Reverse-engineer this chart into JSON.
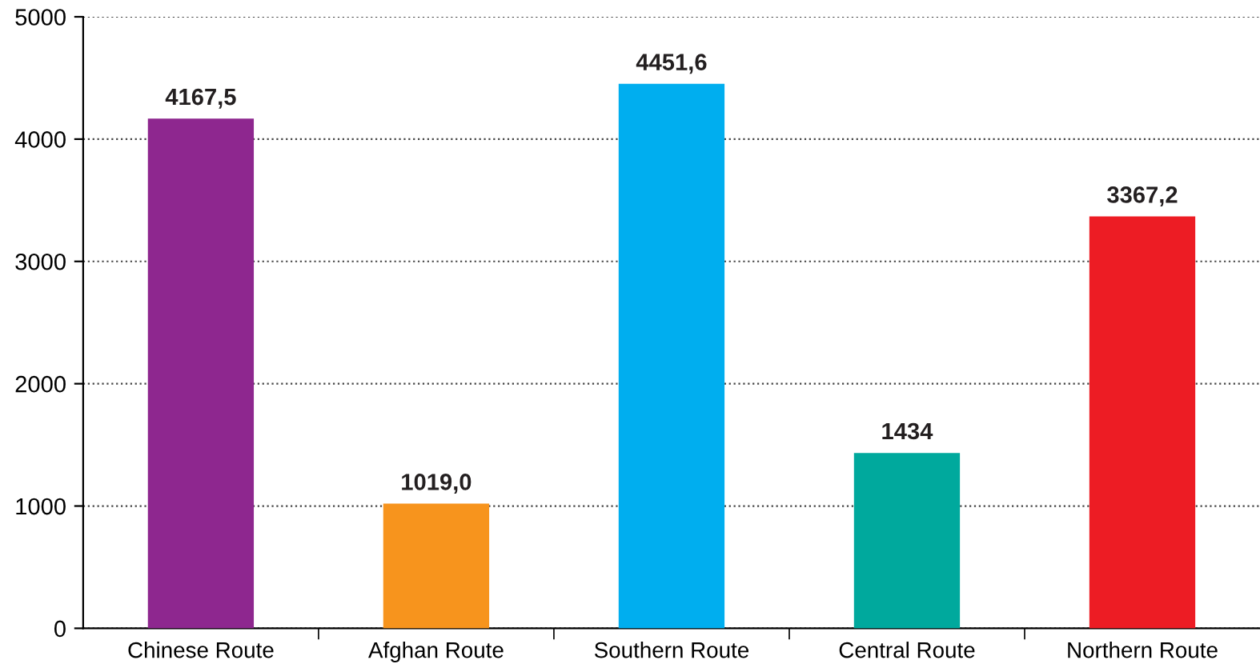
{
  "chart_data": {
    "type": "bar",
    "categories": [
      "Chinese Route",
      "Afghan Route",
      "Southern Route",
      "Central Route",
      "Northern Route"
    ],
    "values": [
      4167.5,
      1019.0,
      4451.6,
      1434,
      3367.2
    ],
    "value_labels": [
      "4167,5",
      "1019,0",
      "4451,6",
      "1434",
      "3367,2"
    ],
    "colors": [
      "#8e278f",
      "#f7941d",
      "#00aeef",
      "#00a99d",
      "#ed1c24"
    ],
    "ylim": [
      0,
      5000
    ],
    "yticks": [
      0,
      1000,
      2000,
      3000,
      4000,
      5000
    ],
    "grid": "y",
    "line_style": "dotted",
    "legend": false
  }
}
